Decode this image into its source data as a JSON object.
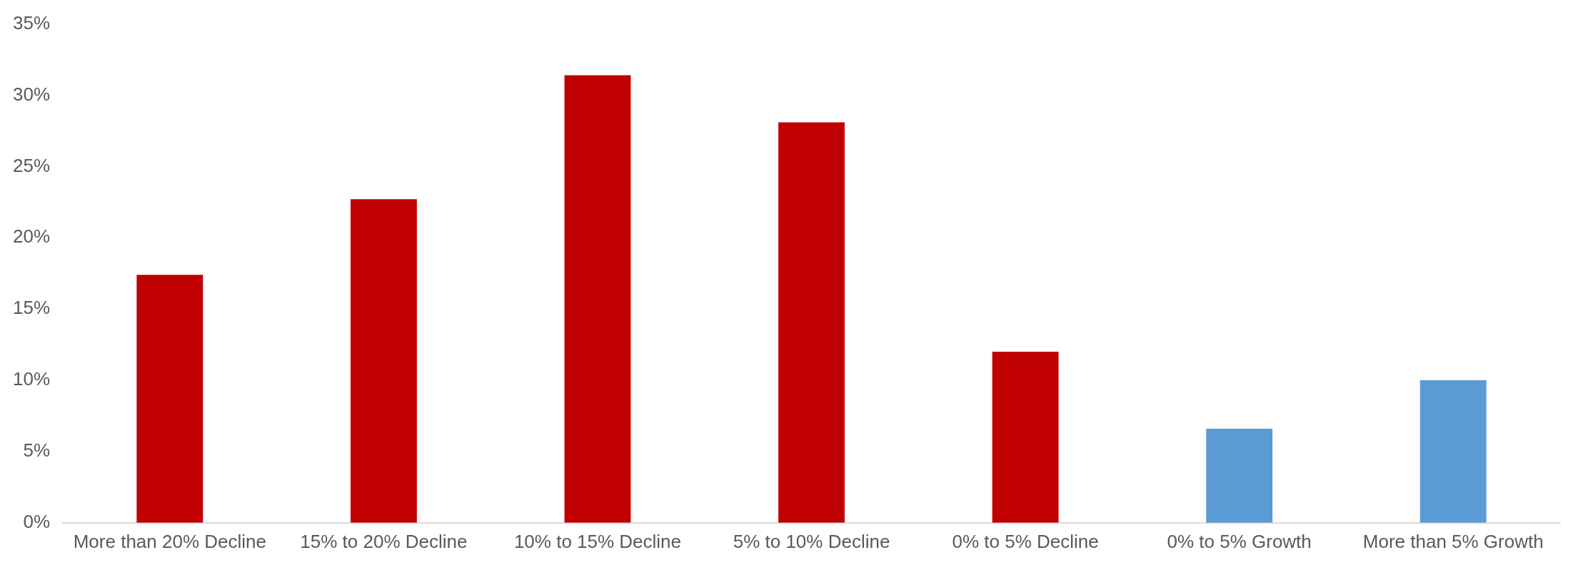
{
  "chart_data": {
    "type": "bar",
    "categories": [
      "More than 20% Decline",
      "15% to 20% Decline",
      "10% to 15% Decline",
      "5% to 10% Decline",
      "0% to 5% Decline",
      "0% to 5% Growth",
      "More than 5% Growth"
    ],
    "values": [
      17.4,
      22.7,
      31.4,
      28.1,
      12.0,
      6.6,
      10.0
    ],
    "colors": [
      "#c00000",
      "#c00000",
      "#c00000",
      "#c00000",
      "#c00000",
      "#5b9bd5",
      "#5b9bd5"
    ],
    "ylim": [
      0,
      35
    ],
    "yticks": [
      {
        "value": 0,
        "label": "0%"
      },
      {
        "value": 5,
        "label": "5%"
      },
      {
        "value": 10,
        "label": "10%"
      },
      {
        "value": 15,
        "label": "15%"
      },
      {
        "value": 20,
        "label": "20%"
      },
      {
        "value": 25,
        "label": "25%"
      },
      {
        "value": 30,
        "label": "30%"
      },
      {
        "value": 35,
        "label": "35%"
      }
    ],
    "grid": false,
    "legend": false
  }
}
